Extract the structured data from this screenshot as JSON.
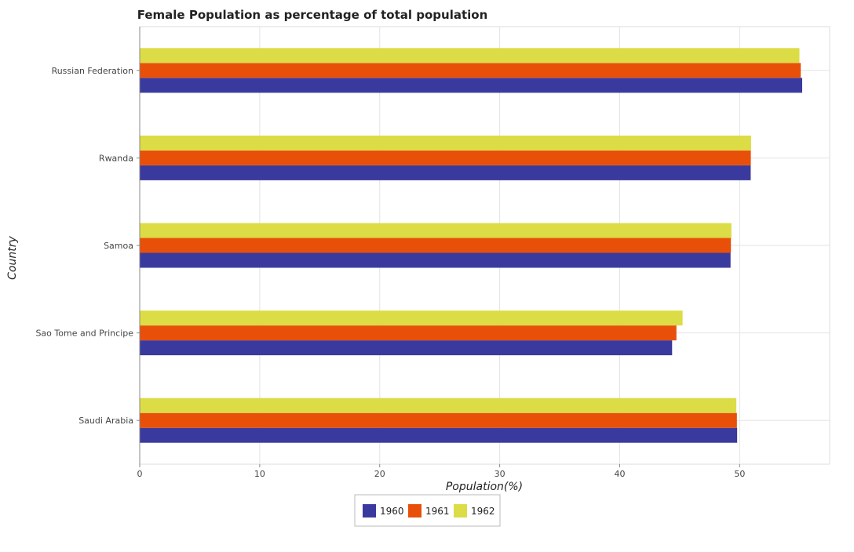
{
  "chart_data": {
    "type": "bar",
    "orientation": "horizontal",
    "title": "Female Population as percentage of total population",
    "xlabel": "Population(%)",
    "ylabel": "Country",
    "categories": [
      "Russian Federation",
      "Rwanda",
      "Samoa",
      "Sao Tome and Principe",
      "Saudi Arabia"
    ],
    "series": [
      {
        "name": "1960",
        "color": "#3a3a9e",
        "values": [
          55.21,
          50.92,
          49.24,
          44.37,
          49.79
        ]
      },
      {
        "name": "1961",
        "color": "#e8500a",
        "values": [
          55.09,
          50.93,
          49.27,
          44.73,
          49.77
        ]
      },
      {
        "name": "1962",
        "color": "#dcdc46",
        "values": [
          54.98,
          50.95,
          49.31,
          45.24,
          49.72
        ]
      }
    ],
    "xlim": [
      0,
      57.5
    ],
    "xticks": [
      0,
      10,
      20,
      30,
      40,
      50
    ],
    "grid": true,
    "legend_position": "bottom-center"
  }
}
